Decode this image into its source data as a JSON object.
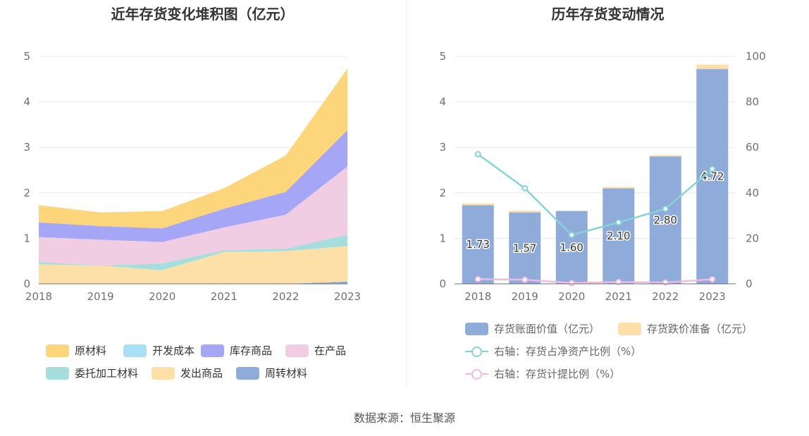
{
  "source_text": "数据来源：恒生聚源",
  "chart_data": [
    {
      "type": "area",
      "title": "近年存货变化堆积图（亿元）",
      "x": [
        "2018",
        "2019",
        "2020",
        "2021",
        "2022",
        "2023"
      ],
      "ylim": [
        0,
        5
      ],
      "yticks": [
        0,
        1,
        2,
        3,
        4,
        5
      ],
      "grid": true,
      "legend_position": "bottom",
      "series": [
        {
          "name": "周转材料",
          "color": "#8fabda",
          "values": [
            0.0,
            0.0,
            0.0,
            0.0,
            0.0,
            0.05
          ]
        },
        {
          "name": "发出商品",
          "color": "#fde0a8",
          "values": [
            0.43,
            0.4,
            0.3,
            0.7,
            0.72,
            0.78
          ]
        },
        {
          "name": "委托加工材料",
          "color": "#a5dedd",
          "values": [
            0.05,
            0.0,
            0.15,
            0.04,
            0.05,
            0.25
          ]
        },
        {
          "name": "开发成本",
          "color": "#a9dff7",
          "values": [
            0.0,
            0.0,
            0.0,
            0.0,
            0.0,
            0.0
          ]
        },
        {
          "name": "在产品",
          "color": "#f0cde3",
          "values": [
            0.55,
            0.57,
            0.47,
            0.5,
            0.75,
            1.5
          ]
        },
        {
          "name": "库存商品",
          "color": "#a6a6f7",
          "values": [
            0.32,
            0.3,
            0.3,
            0.41,
            0.5,
            0.8
          ]
        },
        {
          "name": "原材料",
          "color": "#fdd57a",
          "values": [
            0.38,
            0.3,
            0.38,
            0.45,
            0.8,
            1.35
          ]
        }
      ],
      "legend_order": [
        "原材料",
        "开发成本",
        "库存商品",
        "在产品",
        "委托加工材料",
        "发出商品",
        "周转材料"
      ]
    },
    {
      "type": "bar",
      "title": "历年存货变动情况",
      "x": [
        "2018",
        "2019",
        "2020",
        "2021",
        "2022",
        "2023"
      ],
      "ylim": [
        0,
        5
      ],
      "yticks": [
        0,
        1,
        2,
        3,
        4,
        5
      ],
      "y2lim": [
        0,
        100
      ],
      "y2ticks": [
        0,
        20,
        40,
        60,
        80,
        100
      ],
      "grid": true,
      "legend_position": "bottom",
      "bars": [
        {
          "name": "存货账面价值（亿元）",
          "color": "#8fabda",
          "values": [
            1.73,
            1.57,
            1.6,
            2.1,
            2.8,
            4.72
          ],
          "labels": [
            "1.73",
            "1.57",
            "1.60",
            "2.10",
            "2.80",
            "4.72"
          ]
        },
        {
          "name": "存货跌价准备（亿元）",
          "color": "#fde0a8",
          "values": [
            0.04,
            0.04,
            0.01,
            0.03,
            0.03,
            0.1
          ]
        }
      ],
      "lines": [
        {
          "name": "右轴：存货占净资产比例（%）",
          "color": "#85d3da",
          "axis": "right",
          "values": [
            57,
            42,
            21.5,
            27,
            33,
            50.5
          ]
        },
        {
          "name": "右轴：存货计提比例（%）",
          "color": "#f2b9e0",
          "axis": "right",
          "values": [
            2.1,
            1.8,
            0.4,
            0.8,
            0.6,
            2.0
          ]
        }
      ]
    }
  ]
}
